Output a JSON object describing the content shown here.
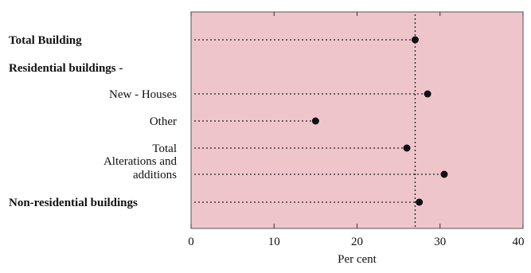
{
  "chart_data": {
    "type": "scatter",
    "subtype": "dot-plot",
    "title": "",
    "xlabel": "Per cent",
    "ylabel": "",
    "xlim": [
      0,
      40
    ],
    "x_ticks": [
      0,
      10,
      20,
      30,
      40
    ],
    "grid": false,
    "reference_line": 27,
    "colors": {
      "plot_background": "#EFC5CC",
      "marker": "#111111",
      "leader": "#222222"
    },
    "categories": [
      {
        "lines": [
          "Total Building"
        ],
        "bold": true,
        "align": "left",
        "value": 27
      },
      {
        "lines": [
          "Residential buildings -"
        ],
        "bold": true,
        "align": "left",
        "value": null
      },
      {
        "lines": [
          "New -    Houses"
        ],
        "bold": false,
        "align": "right",
        "value": 28.5
      },
      {
        "lines": [
          "Other"
        ],
        "bold": false,
        "align": "right",
        "value": 15
      },
      {
        "lines": [
          "Total"
        ],
        "bold": false,
        "align": "right",
        "value": 26
      },
      {
        "lines": [
          "Alterations and",
          "additions"
        ],
        "bold": false,
        "align": "right",
        "value": 30.5
      },
      {
        "lines": [
          "Non-residential buildings"
        ],
        "bold": true,
        "align": "left",
        "value": 27.5
      }
    ]
  }
}
